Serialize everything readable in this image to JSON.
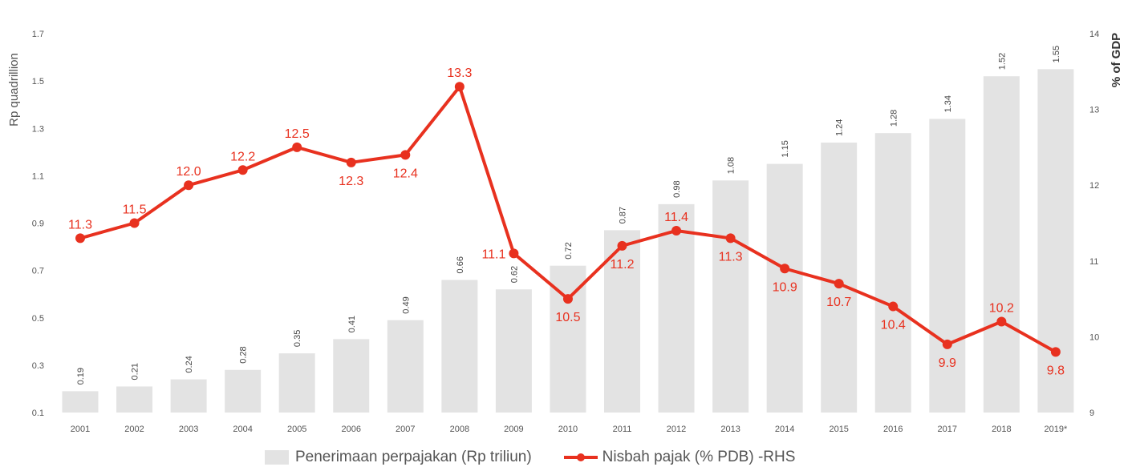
{
  "chart_data": {
    "type": "bar+line",
    "categories": [
      "2001",
      "2002",
      "2003",
      "2004",
      "2005",
      "2006",
      "2007",
      "2008",
      "2009",
      "2010",
      "2011",
      "2012",
      "2013",
      "2014",
      "2015",
      "2016",
      "2017",
      "2018",
      "2019*"
    ],
    "series": [
      {
        "name": "Penerimaan perpajakan (Rp triliun)",
        "type": "bar",
        "axis": "left",
        "values": [
          0.19,
          0.21,
          0.24,
          0.28,
          0.35,
          0.41,
          0.49,
          0.66,
          0.62,
          0.72,
          0.87,
          0.98,
          1.08,
          1.15,
          1.24,
          1.28,
          1.34,
          1.52,
          1.55
        ],
        "labels": [
          "0.19",
          "0.21",
          "0.24",
          "0.28",
          "0.35",
          "0.41",
          "0.49",
          "0.66",
          "0.62",
          "0.72",
          "0.87",
          "0.98",
          "1.08",
          "1.15",
          "1.24",
          "1.28",
          "1.34",
          "1.52",
          "1.55"
        ]
      },
      {
        "name": "Nisbah pajak (% PDB) -RHS",
        "type": "line",
        "axis": "right",
        "values": [
          11.3,
          11.5,
          12.0,
          12.2,
          12.5,
          12.3,
          12.4,
          13.3,
          11.1,
          10.5,
          11.2,
          11.4,
          11.3,
          10.9,
          10.7,
          10.4,
          9.9,
          10.2,
          9.8
        ],
        "labels": [
          "11.3",
          "11.5",
          "12.0",
          "12.2",
          "12.5",
          "12.3",
          "12.4",
          "13.3",
          "11.1",
          "10.5",
          "11.2",
          "11.4",
          "11.3",
          "10.9",
          "10.7",
          "10.4",
          "9.9",
          "10.2",
          "9.8"
        ]
      }
    ],
    "ylabel": "Rp quadrillion",
    "y2label": "% of GDP",
    "ylim": [
      0.1,
      1.7
    ],
    "yticks": [
      "0.1",
      "0.3",
      "0.5",
      "0.7",
      "0.9",
      "1.1",
      "1.3",
      "1.5",
      "1.7"
    ],
    "y2lim": [
      9,
      14
    ],
    "y2ticks": [
      "9",
      "10",
      "11",
      "12",
      "13",
      "14"
    ],
    "grid": false,
    "legend_position": "bottom",
    "colors": {
      "bar": "#e3e3e3",
      "line": "#e8311f",
      "text": "#555555"
    }
  }
}
